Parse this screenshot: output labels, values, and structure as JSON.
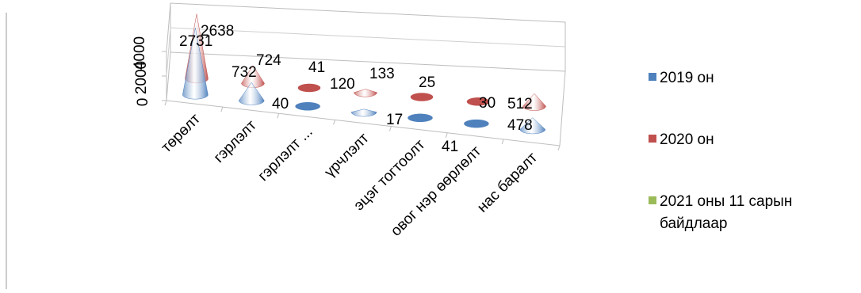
{
  "chart_data": {
    "type": "bar",
    "title": "",
    "categories": [
      "төрөлт",
      "гэрлэлт",
      "гэрлэлт ...",
      "үрчлэлт",
      "эцэг тогтоолт",
      "овог нэр өөрлөлт",
      "нас баралт"
    ],
    "series": [
      {
        "name": "2019 он",
        "color": "#4F81BD",
        "values": [
          2731,
          732,
          40,
          120,
          17,
          41,
          478
        ]
      },
      {
        "name": "2020 он",
        "color": "#C0504D",
        "values": [
          2638,
          724,
          41,
          133,
          25,
          30,
          512
        ]
      },
      {
        "name": "2021 оны 11 сарын байдлаар",
        "color": "#9BBB59",
        "values": [
          null,
          null,
          null,
          null,
          null,
          null,
          null
        ]
      }
    ],
    "y_ticks": [
      "0",
      "2000",
      "4000"
    ],
    "ylim": [
      0,
      4000
    ],
    "legend_position": "right",
    "mark_shape": "cone",
    "perspective": "3d"
  },
  "legend": {
    "items": [
      {
        "label": "2019 он",
        "color": "#4F81BD"
      },
      {
        "label": "2020 он",
        "color": "#C0504D"
      },
      {
        "label": "2021 оны 11 сарын\nбайдлаар",
        "color": "#9BBB59"
      }
    ]
  },
  "data_labels": {
    "s2019": [
      "2731",
      "732",
      "40",
      "120",
      "17",
      "41",
      "478"
    ],
    "s2020": [
      "2638",
      "724",
      "41",
      "133",
      "25",
      "30",
      "512"
    ]
  }
}
